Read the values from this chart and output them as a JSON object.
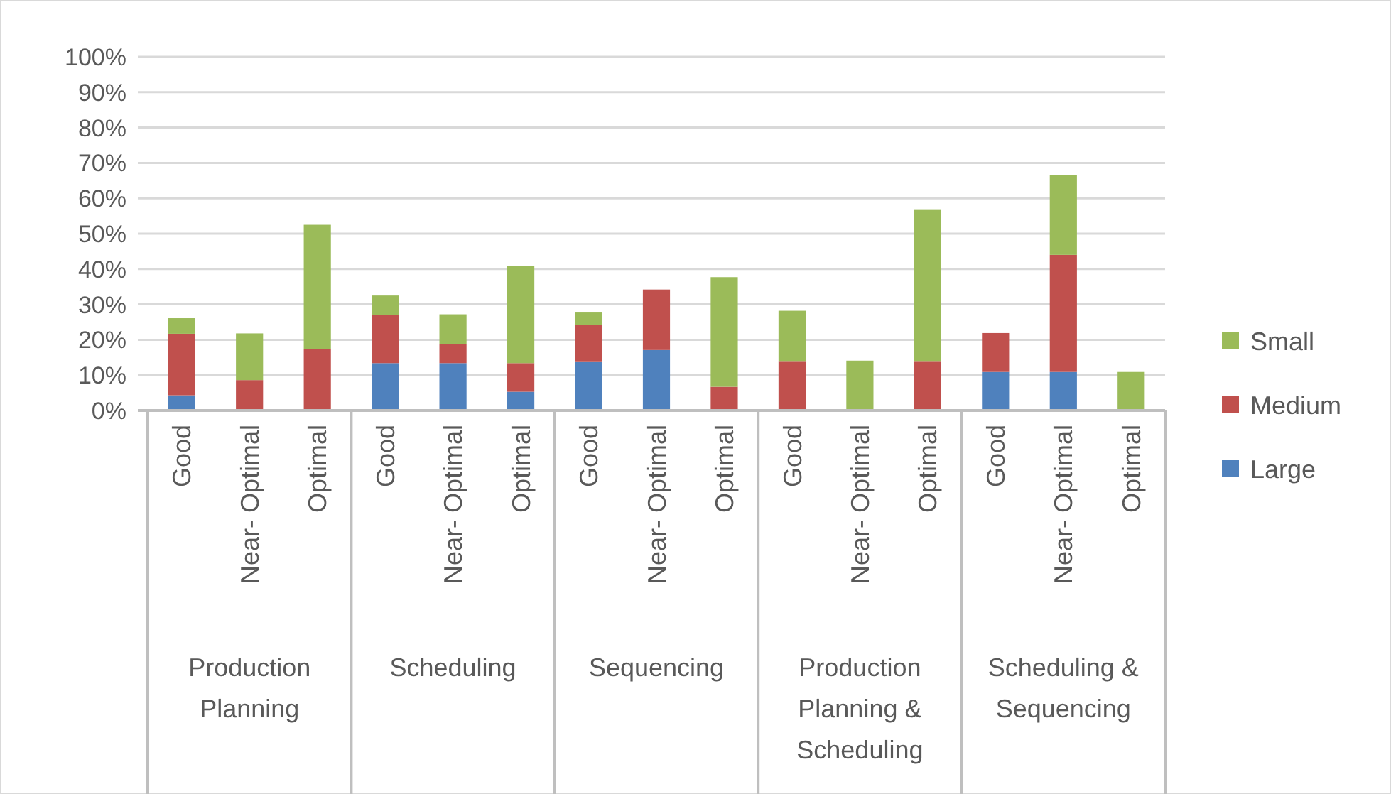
{
  "chart_data": {
    "type": "bar",
    "stacked": true,
    "categories": [
      "Good",
      "Near- Optimal",
      "Optimal",
      "Good",
      "Near- Optimal",
      "Optimal",
      "Good",
      "Near- Optimal",
      "Optimal",
      "Good",
      "Near- Optimal",
      "Optimal",
      "Good",
      "Near- Optimal",
      "Optimal"
    ],
    "annotations": [
      "Production Planning",
      "Scheduling",
      "Sequencing",
      "Production Planning & Scheduling",
      "Scheduling & Sequencing"
    ],
    "series": [
      {
        "name": "Large",
        "color": "#4f81bd",
        "values": [
          4.3,
          0,
          0,
          13.4,
          13.4,
          5.3,
          13.7,
          17.1,
          0,
          0,
          0,
          0,
          10.9,
          10.9,
          0
        ]
      },
      {
        "name": "Medium",
        "color": "#c0504d",
        "values": [
          17.4,
          8.6,
          17.3,
          13.6,
          5.4,
          8.1,
          10.4,
          17.1,
          6.7,
          13.8,
          0,
          13.8,
          11,
          33.1,
          0
        ]
      },
      {
        "name": "Small",
        "color": "#9bbb59",
        "values": [
          4.4,
          13.2,
          35.2,
          5.5,
          8.4,
          27.4,
          3.6,
          0,
          31,
          14.4,
          14.1,
          43.1,
          0,
          22.5,
          10.9
        ]
      }
    ],
    "ylim": [
      0,
      100
    ],
    "yticks": [
      {
        "value": 0,
        "label": "0%"
      },
      {
        "value": 10,
        "label": "10%"
      },
      {
        "value": 20,
        "label": "20%"
      },
      {
        "value": 30,
        "label": "30%"
      },
      {
        "value": 40,
        "label": "40%"
      },
      {
        "value": 50,
        "label": "50%"
      },
      {
        "value": 60,
        "label": "60%"
      },
      {
        "value": 70,
        "label": "70%"
      },
      {
        "value": 80,
        "label": "80%"
      },
      {
        "value": 90,
        "label": "90%"
      },
      {
        "value": 100,
        "label": "100%"
      }
    ],
    "grid": "y",
    "legend": "right"
  }
}
